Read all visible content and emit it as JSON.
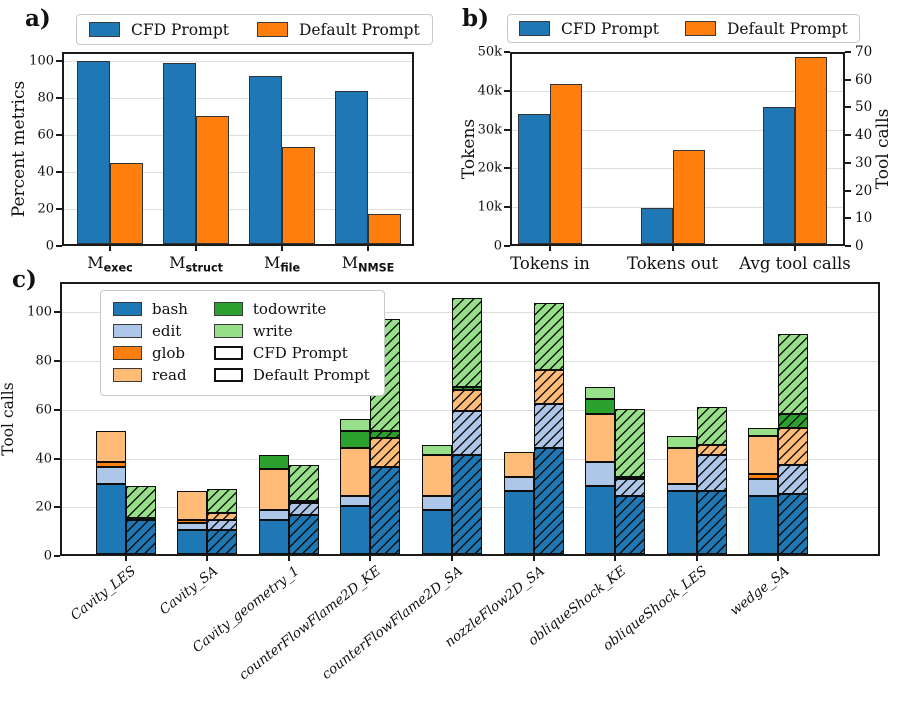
{
  "colors": {
    "cfd_blue": "#1f77b4",
    "default_orange": "#ff7f0e",
    "bash": "#1f77b4",
    "edit": "#aec7e8",
    "glob": "#ff7f0e",
    "read": "#ffbb78",
    "todowrite": "#2ca02c",
    "write": "#98df8a",
    "grid": "#dedede",
    "axis": "#1a1a1a"
  },
  "panels": {
    "a": {
      "label": "a)",
      "ylabel": "Percent metrics",
      "legend": [
        {
          "label": "CFD Prompt",
          "color": "#1f77b4"
        },
        {
          "label": "Default Prompt",
          "color": "#ff7f0e"
        }
      ]
    },
    "b": {
      "label": "b)",
      "ylabel_left": "Tokens",
      "ylabel_right": "Tool calls",
      "legend": [
        {
          "label": "CFD Prompt",
          "color": "#1f77b4"
        },
        {
          "label": "Default Prompt",
          "color": "#ff7f0e"
        }
      ]
    },
    "c": {
      "label": "c)",
      "ylabel": "Tool calls",
      "legend_tools": [
        {
          "label": "bash",
          "color": "#1f77b4"
        },
        {
          "label": "edit",
          "color": "#aec7e8"
        },
        {
          "label": "glob",
          "color": "#ff7f0e"
        },
        {
          "label": "read",
          "color": "#ffbb78"
        },
        {
          "label": "todowrite",
          "color": "#2ca02c"
        },
        {
          "label": "write",
          "color": "#98df8a"
        }
      ],
      "legend_styles": [
        {
          "label": "CFD Prompt",
          "hatch": false
        },
        {
          "label": "Default Prompt",
          "hatch": true
        }
      ]
    }
  },
  "chart_data": [
    {
      "id": "a",
      "type": "bar",
      "categories": [
        "M_exec",
        "M_struct",
        "M_file",
        "M_NMSE"
      ],
      "subscript_labels": true,
      "series": [
        {
          "name": "CFD Prompt",
          "values": [
            100,
            99,
            92,
            83.5
          ]
        },
        {
          "name": "Default Prompt",
          "values": [
            44.5,
            70,
            53,
            16.5
          ]
        }
      ],
      "ylabel": "Percent metrics",
      "ylim": [
        0,
        105
      ],
      "yticks": [
        0,
        20,
        40,
        60,
        80,
        100
      ],
      "grid": true,
      "legend_position": "above"
    },
    {
      "id": "b",
      "type": "bar",
      "categories": [
        "Tokens in",
        "Tokens out",
        "Avg tool calls"
      ],
      "category_axis": [
        "left",
        "left",
        "right"
      ],
      "series": [
        {
          "name": "CFD Prompt",
          "values": [
            33800,
            9400,
            50
          ]
        },
        {
          "name": "Default Prompt",
          "values": [
            41700,
            24500,
            68
          ]
        }
      ],
      "ylabel_left": "Tokens",
      "ylabel_right": "Tool calls",
      "ylim_left": [
        0,
        50000
      ],
      "ylim_right": [
        0,
        70
      ],
      "yticks_left": [
        {
          "label": "0",
          "v": 0
        },
        {
          "label": "10k",
          "v": 10000
        },
        {
          "label": "20k",
          "v": 20000
        },
        {
          "label": "30k",
          "v": 30000
        },
        {
          "label": "40k",
          "v": 40000
        },
        {
          "label": "50k",
          "v": 50000
        }
      ],
      "yticks_right": [
        0,
        10,
        20,
        30,
        40,
        50,
        60,
        70
      ],
      "grid": true,
      "legend_position": "above"
    },
    {
      "id": "c",
      "type": "stacked-bar",
      "categories": [
        "Cavity_LES",
        "Cavity_SA",
        "Cavity_geometry_1",
        "counterFlowFlame2D_KE",
        "counterFlowFlame2D_SA",
        "nozzleFlow2D_SA",
        "obliqueShock_KE",
        "obliqueShock_LES",
        "wedge_SA"
      ],
      "stack_order": [
        "bash",
        "edit",
        "glob",
        "read",
        "todowrite",
        "write"
      ],
      "series": [
        {
          "name": "CFD Prompt",
          "hatch": false,
          "stacks": [
            {
              "bash": 29,
              "edit": 7,
              "glob": 2,
              "read": 13
            },
            {
              "bash": 10,
              "edit": 3,
              "glob": 1,
              "read": 12
            },
            {
              "bash": 14,
              "edit": 4,
              "read": 17,
              "todowrite": 6
            },
            {
              "bash": 20,
              "edit": 4,
              "read": 20,
              "todowrite": 7,
              "write": 5
            },
            {
              "bash": 18,
              "edit": 6,
              "read": 17,
              "write": 4
            },
            {
              "bash": 26,
              "edit": 6,
              "read": 10
            },
            {
              "bash": 28,
              "edit": 10,
              "read": 20,
              "todowrite": 6,
              "write": 5
            },
            {
              "bash": 26,
              "edit": 3,
              "read": 15,
              "write": 5
            },
            {
              "bash": 24,
              "edit": 7,
              "glob": 2,
              "read": 16,
              "write": 3
            }
          ]
        },
        {
          "name": "Default Prompt",
          "hatch": true,
          "stacks": [
            {
              "bash": 14,
              "edit": 1,
              "write": 13
            },
            {
              "bash": 10,
              "edit": 4,
              "read": 3,
              "write": 10
            },
            {
              "bash": 16,
              "edit": 5,
              "read": 1,
              "write": 15
            },
            {
              "bash": 36,
              "read": 12,
              "todowrite": 3,
              "write": 46
            },
            {
              "bash": 41,
              "edit": 18,
              "read": 9,
              "todowrite": 1,
              "write": 37
            },
            {
              "bash": 44,
              "edit": 18,
              "read": 14,
              "write": 28
            },
            {
              "bash": 24,
              "edit": 7,
              "read": 1,
              "write": 28
            },
            {
              "bash": 26,
              "edit": 15,
              "read": 4,
              "write": 16
            },
            {
              "bash": 25,
              "edit": 12,
              "read": 15,
              "todowrite": 6,
              "write": 33
            }
          ]
        }
      ],
      "ylabel": "Tool calls",
      "ylim": [
        0,
        112.5
      ],
      "yticks": [
        0,
        20,
        40,
        60,
        80,
        100
      ],
      "grid": true,
      "legend_position": "upper-left-inside"
    }
  ]
}
